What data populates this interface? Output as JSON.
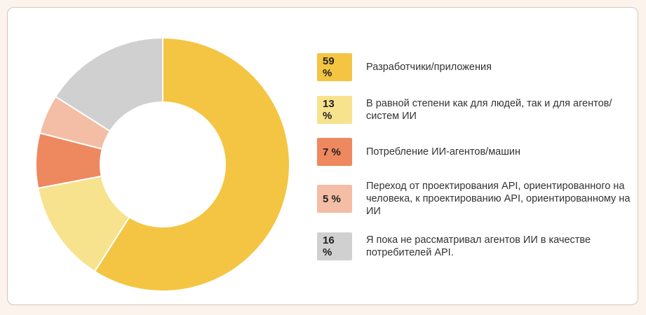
{
  "chart_data": {
    "type": "pie",
    "title": "",
    "legend_position": "right",
    "slices": [
      {
        "label": "Разработчики/приложения",
        "value": 59,
        "display": "59 %",
        "color": "#f4c542"
      },
      {
        "label": "В равной степени как для людей, так и для агентов/систем ИИ",
        "value": 13,
        "display": "13 %",
        "color": "#f7e38d"
      },
      {
        "label": "Потребление ИИ-агентов/машин",
        "value": 7,
        "display": "7 %",
        "color": "#ee885f"
      },
      {
        "label": "Переход от проектирования API, ориентированного на человека, к проектированию API, ориентированному на ИИ",
        "value": 5,
        "display": "5 %",
        "color": "#f4bda5"
      },
      {
        "label": "Я пока не рассматривал агентов ИИ в качестве потребителей API.",
        "value": 16,
        "display": "16 %",
        "color": "#d0d0d0"
      }
    ]
  }
}
